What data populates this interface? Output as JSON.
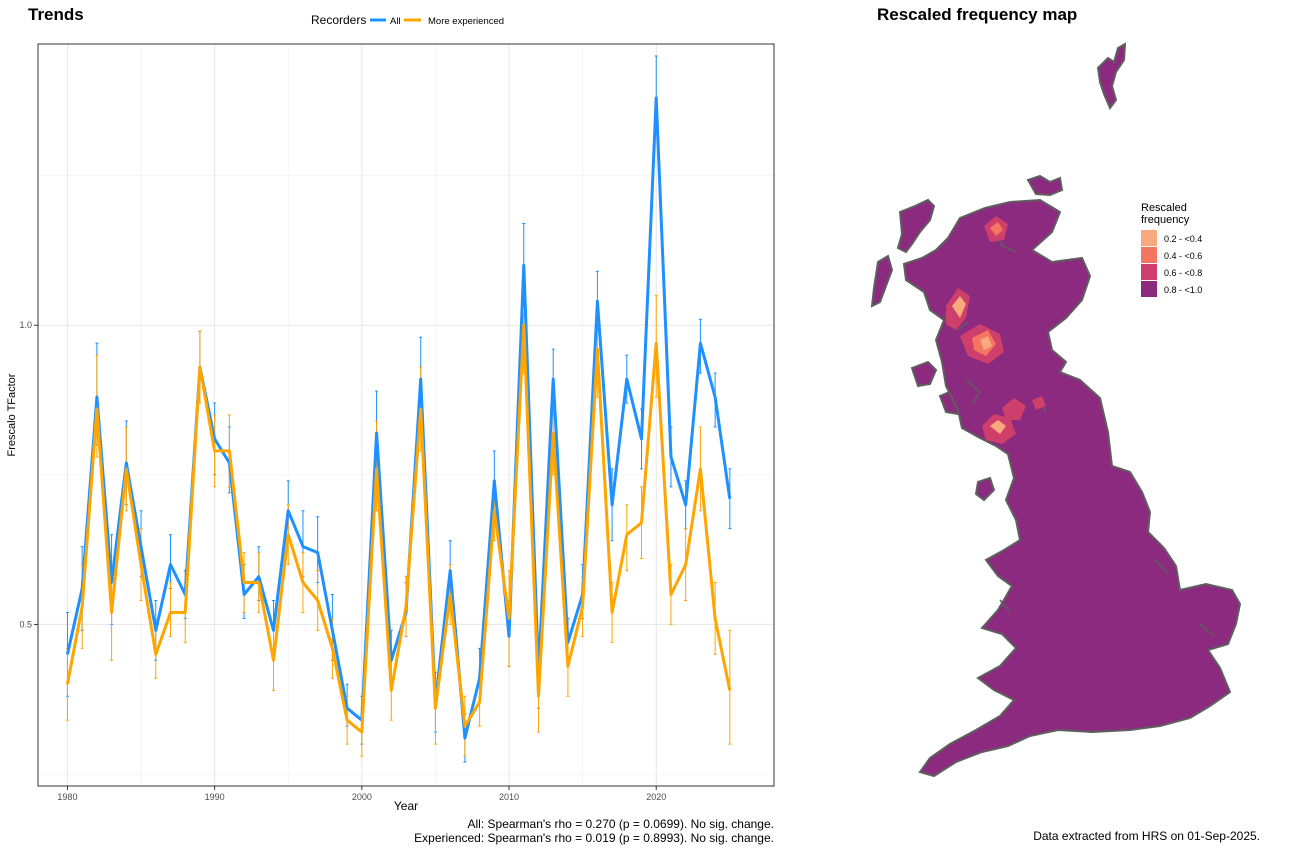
{
  "trends": {
    "title": "Trends",
    "stats_all": "All: Spearman's rho = 0.270 (p = 0.0699). No sig. change.",
    "stats_exp": "Experienced: Spearman's rho = 0.019 (p = 0.8993). No sig. change."
  },
  "map": {
    "title": "Rescaled frequency map",
    "legend_title": [
      "Rescaled",
      "frequency"
    ],
    "legend": [
      {
        "label": "0.2 - <0.4",
        "color": "#F9A97E"
      },
      {
        "label": "0.4 - <0.6",
        "color": "#F47560"
      },
      {
        "label": "0.6 - <0.8",
        "color": "#CE3F6B"
      },
      {
        "label": "0.8 - <1.0",
        "color": "#8B2A7E"
      }
    ],
    "coast_color": "#5F5F5F"
  },
  "footer": {
    "source": "Data extracted from HRS on 01-Sep-2025."
  },
  "chart_data": {
    "type": "line",
    "xlabel": "Year",
    "ylabel": "Frescalo TFactor",
    "legend_title": "Recorders",
    "legend_position": "top",
    "grid": true,
    "xlim": [
      1978,
      2028
    ],
    "ylim": [
      0.23,
      1.47
    ],
    "x_ticks": [
      1980,
      1990,
      2000,
      2010,
      2020
    ],
    "y_ticks": [
      0.5,
      1.0
    ],
    "y_tick_labels": [
      "0.5",
      "1.0"
    ],
    "x": [
      1980,
      1981,
      1982,
      1983,
      1984,
      1985,
      1986,
      1987,
      1988,
      1989,
      1990,
      1991,
      1992,
      1993,
      1994,
      1995,
      1996,
      1997,
      1998,
      1999,
      2000,
      2001,
      2002,
      2003,
      2004,
      2005,
      2006,
      2007,
      2008,
      2009,
      2010,
      2011,
      2012,
      2013,
      2014,
      2015,
      2016,
      2017,
      2018,
      2019,
      2020,
      2021,
      2022,
      2023,
      2024,
      2025
    ],
    "series": [
      {
        "name": "All",
        "color": "#1E90FF",
        "values": [
          0.45,
          0.56,
          0.88,
          0.57,
          0.77,
          0.63,
          0.49,
          0.6,
          0.55,
          0.93,
          0.81,
          0.77,
          0.55,
          0.58,
          0.49,
          0.69,
          0.63,
          0.62,
          0.49,
          0.36,
          0.34,
          0.82,
          0.44,
          0.52,
          0.91,
          0.37,
          0.59,
          0.31,
          0.41,
          0.74,
          0.48,
          1.1,
          0.42,
          0.91,
          0.47,
          0.55,
          1.04,
          0.7,
          0.91,
          0.81,
          1.38,
          0.78,
          0.7,
          0.97,
          0.88,
          0.71
        ],
        "lower": [
          0.38,
          0.49,
          0.8,
          0.5,
          0.7,
          0.58,
          0.44,
          0.56,
          0.51,
          0.87,
          0.75,
          0.72,
          0.51,
          0.54,
          0.45,
          0.64,
          0.58,
          0.57,
          0.44,
          0.33,
          0.3,
          0.76,
          0.4,
          0.48,
          0.84,
          0.32,
          0.54,
          0.27,
          0.37,
          0.69,
          0.43,
          1.04,
          0.36,
          0.86,
          0.43,
          0.51,
          0.99,
          0.64,
          0.87,
          0.76,
          1.32,
          0.73,
          0.66,
          0.92,
          0.83,
          0.66
        ],
        "upper": [
          0.52,
          0.63,
          0.97,
          0.65,
          0.84,
          0.69,
          0.54,
          0.65,
          0.59,
          0.99,
          0.87,
          0.83,
          0.6,
          0.63,
          0.54,
          0.74,
          0.69,
          0.68,
          0.55,
          0.4,
          0.38,
          0.89,
          0.49,
          0.57,
          0.98,
          0.42,
          0.64,
          0.35,
          0.46,
          0.79,
          0.54,
          1.17,
          0.48,
          0.96,
          0.51,
          0.6,
          1.09,
          0.76,
          0.95,
          0.86,
          1.45,
          0.83,
          0.74,
          1.01,
          0.92,
          0.76
        ]
      },
      {
        "name": "More experienced",
        "color": "#FFA500",
        "values": [
          0.4,
          0.53,
          0.86,
          0.52,
          0.76,
          0.6,
          0.45,
          0.52,
          0.52,
          0.93,
          0.79,
          0.79,
          0.57,
          0.57,
          0.44,
          0.65,
          0.57,
          0.54,
          0.46,
          0.34,
          0.32,
          0.76,
          0.39,
          0.53,
          0.86,
          0.36,
          0.55,
          0.33,
          0.37,
          0.69,
          0.51,
          1.0,
          0.38,
          0.82,
          0.43,
          0.53,
          0.96,
          0.52,
          0.65,
          0.67,
          0.97,
          0.55,
          0.6,
          0.76,
          0.51,
          0.39
        ],
        "lower": [
          0.34,
          0.46,
          0.78,
          0.44,
          0.69,
          0.54,
          0.41,
          0.48,
          0.47,
          0.87,
          0.73,
          0.73,
          0.52,
          0.52,
          0.39,
          0.6,
          0.52,
          0.49,
          0.41,
          0.3,
          0.28,
          0.69,
          0.34,
          0.48,
          0.79,
          0.3,
          0.5,
          0.28,
          0.33,
          0.64,
          0.43,
          0.92,
          0.32,
          0.75,
          0.38,
          0.48,
          0.88,
          0.47,
          0.59,
          0.61,
          0.88,
          0.5,
          0.54,
          0.69,
          0.45,
          0.3
        ],
        "upper": [
          0.46,
          0.6,
          0.95,
          0.59,
          0.83,
          0.66,
          0.5,
          0.57,
          0.57,
          0.99,
          0.85,
          0.85,
          0.62,
          0.62,
          0.49,
          0.7,
          0.62,
          0.59,
          0.51,
          0.38,
          0.36,
          0.84,
          0.44,
          0.58,
          0.93,
          0.41,
          0.6,
          0.38,
          0.41,
          0.74,
          0.59,
          1.02,
          0.44,
          0.88,
          0.48,
          0.58,
          1.04,
          0.57,
          0.7,
          0.73,
          1.05,
          0.6,
          0.66,
          0.83,
          0.57,
          0.49
        ]
      }
    ]
  }
}
